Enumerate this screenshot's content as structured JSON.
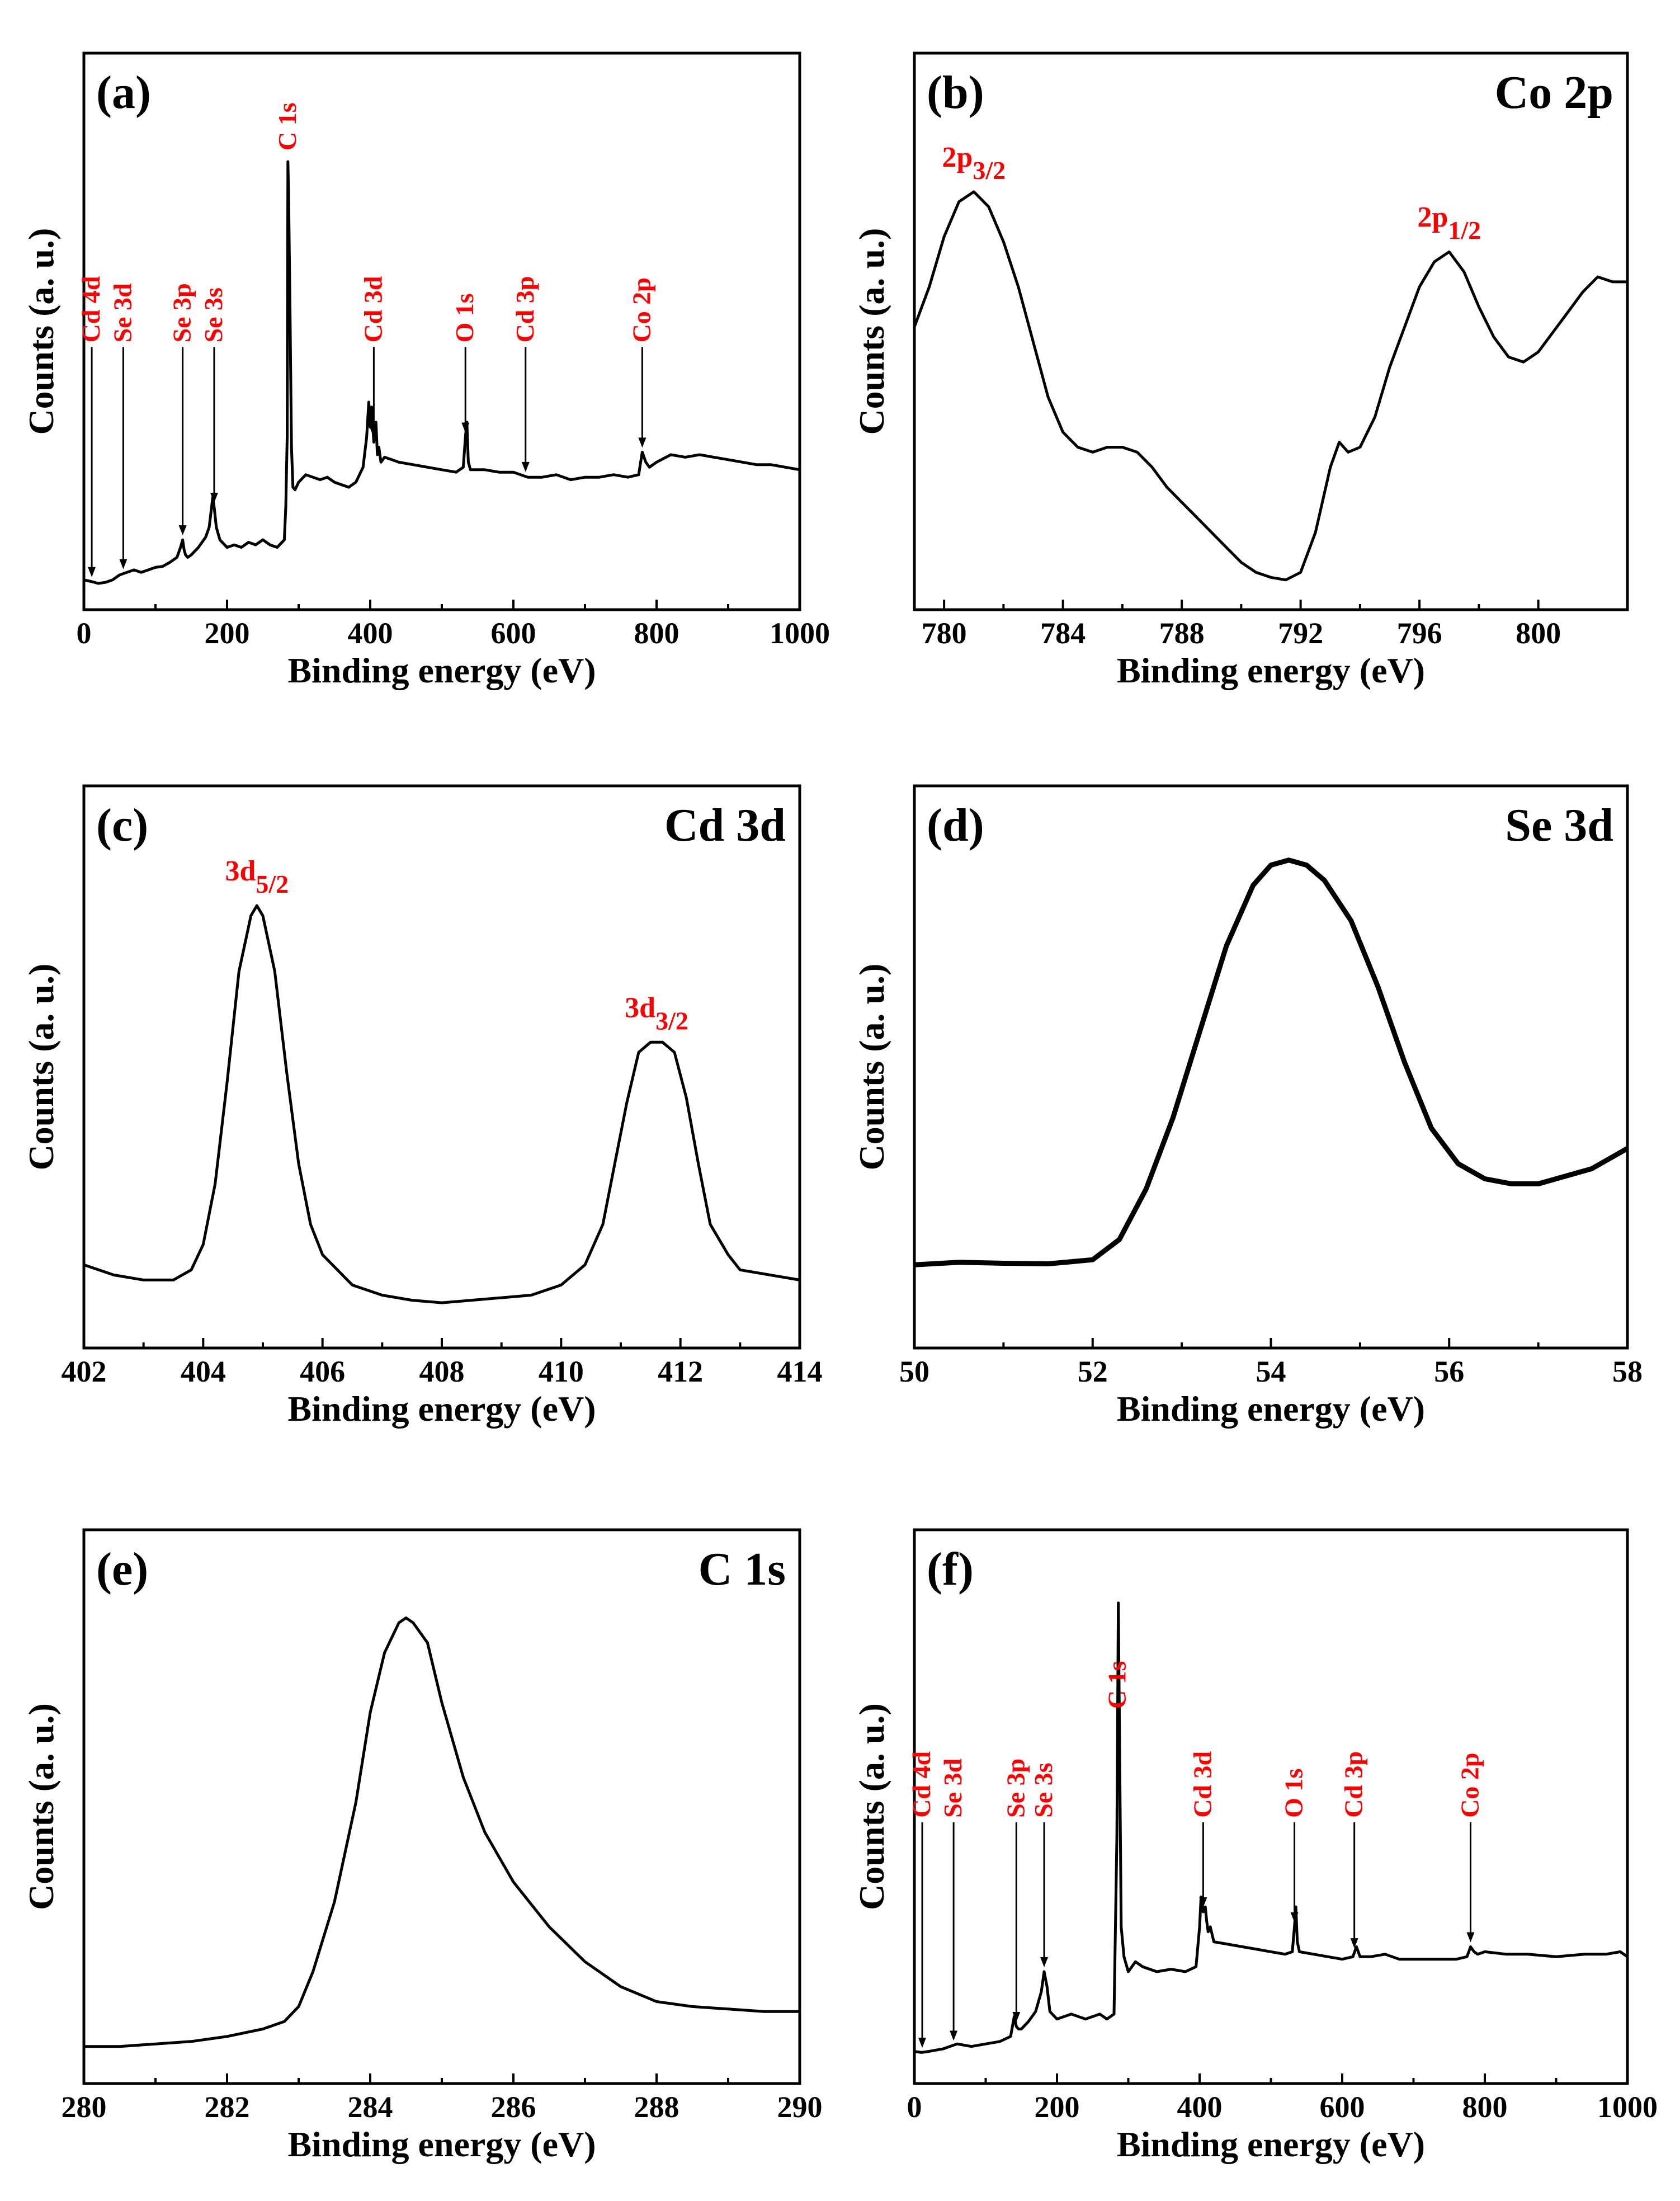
{
  "chart_data": [
    {
      "id": "a",
      "type": "line",
      "panel_label": "(a)",
      "title": "",
      "xlabel": "Binding energy (eV)",
      "ylabel": "Counts (a. u.)",
      "xlim": [
        0,
        1000
      ],
      "ylim": [
        0,
        100
      ],
      "xticks": [
        0,
        200,
        400,
        600,
        800,
        1000
      ],
      "x": [
        0,
        10,
        20,
        30,
        40,
        50,
        60,
        70,
        80,
        90,
        100,
        110,
        120,
        130,
        135,
        138,
        140,
        142,
        145,
        150,
        160,
        170,
        175,
        178,
        180,
        182,
        185,
        190,
        200,
        210,
        220,
        230,
        240,
        250,
        260,
        270,
        280,
        282,
        284,
        285,
        286,
        288,
        290,
        292,
        295,
        300,
        310,
        320,
        330,
        340,
        350,
        360,
        370,
        380,
        390,
        395,
        398,
        400,
        402,
        405,
        408,
        410,
        412,
        415,
        420,
        430,
        440,
        460,
        480,
        500,
        520,
        530,
        533,
        535,
        537,
        540,
        560,
        580,
        600,
        620,
        640,
        660,
        680,
        700,
        720,
        740,
        760,
        775,
        780,
        785,
        790,
        800,
        820,
        840,
        860,
        880,
        900,
        920,
        940,
        960,
        980,
        1000
      ],
      "values": [
        1.5,
        1.2,
        0.8,
        1.0,
        1.5,
        2.5,
        3.0,
        3.5,
        3.0,
        3.5,
        4.0,
        4.2,
        5.0,
        6.0,
        8.0,
        9.5,
        7.5,
        6.5,
        6.0,
        6.5,
        8.0,
        10.0,
        12.0,
        15.5,
        18.0,
        16.0,
        12.0,
        9.5,
        8.0,
        8.5,
        8.0,
        9.0,
        8.5,
        9.5,
        8.5,
        8.0,
        9.5,
        16.0,
        30.0,
        85.0,
        78.0,
        55.0,
        28.0,
        20.0,
        19.5,
        21.0,
        22.5,
        22.0,
        21.5,
        22.0,
        21.0,
        20.5,
        20.0,
        21.0,
        24.0,
        30.0,
        37.0,
        32.0,
        36.0,
        29.0,
        33.0,
        26.5,
        28.0,
        25.0,
        26.0,
        25.5,
        25.0,
        24.5,
        24.0,
        23.5,
        23.0,
        24.0,
        30.0,
        33.0,
        25.0,
        23.5,
        23.5,
        23.0,
        23.0,
        22.0,
        22.0,
        22.5,
        21.5,
        22.0,
        22.0,
        22.5,
        22.0,
        22.5,
        27.0,
        25.0,
        24.0,
        25.0,
        26.5,
        26.0,
        26.5,
        26.0,
        25.5,
        25.0,
        24.5,
        24.5,
        24.0,
        23.5
      ],
      "annotations": [
        {
          "text": "Cd 4d",
          "x": 11
        },
        {
          "text": "Se 3d",
          "x": 55
        },
        {
          "text": "Se 3p",
          "x": 138
        },
        {
          "text": "Se 3s",
          "x": 182
        },
        {
          "text": "C 1s",
          "x": 285
        },
        {
          "text": "Cd 3d",
          "x": 405
        },
        {
          "text": "O 1s",
          "x": 533
        },
        {
          "text": "Cd 3p",
          "x": 617
        },
        {
          "text": "Co 2p",
          "x": 780
        }
      ]
    },
    {
      "id": "b",
      "type": "line",
      "panel_label": "(b)",
      "title": "Co 2p",
      "xlabel": "Binding energy (eV)",
      "ylabel": "Counts (a. u.)",
      "xlim": [
        779,
        803
      ],
      "ylim": [
        0,
        100
      ],
      "xticks": [
        780,
        784,
        788,
        792,
        796,
        800
      ],
      "x": [
        779,
        779.5,
        780,
        780.5,
        781,
        781.5,
        782,
        782.5,
        783,
        783.5,
        784,
        784.5,
        785,
        785.5,
        786,
        786.5,
        787,
        787.5,
        788,
        788.5,
        789,
        789.5,
        790,
        790.5,
        791,
        791.5,
        792,
        792.5,
        793,
        793.3,
        793.6,
        794,
        794.5,
        795,
        795.5,
        796,
        796.5,
        797,
        797.5,
        798,
        798.5,
        799,
        799.5,
        800,
        800.5,
        801,
        801.5,
        802,
        802.5,
        803
      ],
      "values": [
        52,
        60,
        70,
        77,
        79,
        76,
        69,
        60,
        49,
        38,
        31,
        28,
        27,
        28,
        28,
        27,
        24,
        20,
        17,
        14,
        11,
        8,
        5,
        3,
        2,
        1.5,
        3,
        11,
        24,
        29,
        27,
        28,
        34,
        44,
        52,
        60,
        65,
        67,
        63,
        56,
        50,
        46,
        45,
        47,
        51,
        55,
        59,
        62,
        61,
        61
      ],
      "annotations": [
        {
          "text": "2p",
          "sub": "3/2",
          "x": 781
        },
        {
          "text": "2p",
          "sub": "1/2",
          "x": 797
        }
      ]
    },
    {
      "id": "c",
      "type": "line",
      "panel_label": "(c)",
      "title": "Cd 3d",
      "xlabel": "Binding energy (eV)",
      "ylabel": "Counts (a. u.)",
      "xlim": [
        402,
        414
      ],
      "ylim": [
        0,
        100
      ],
      "xticks": [
        402,
        404,
        406,
        408,
        410,
        412,
        414
      ],
      "x": [
        402,
        402.5,
        403,
        403.5,
        403.8,
        404,
        404.2,
        404.4,
        404.6,
        404.8,
        404.9,
        405,
        405.2,
        405.4,
        405.6,
        405.8,
        406,
        406.5,
        407,
        407.5,
        408,
        408.5,
        409,
        409.5,
        410,
        410.4,
        410.7,
        410.9,
        411.1,
        411.3,
        411.5,
        411.7,
        411.9,
        412.1,
        412.3,
        412.5,
        412.8,
        413,
        413.5,
        414
      ],
      "values": [
        12,
        10,
        9,
        9,
        11,
        16,
        28,
        48,
        70,
        81,
        83,
        81,
        70,
        50,
        32,
        20,
        14,
        8,
        6,
        5,
        4.5,
        5,
        5.5,
        6,
        8,
        12,
        20,
        32,
        44,
        54,
        56,
        56,
        54,
        45,
        32,
        20,
        14,
        11,
        10,
        9
      ],
      "annotations": [
        {
          "text": "3d",
          "sub": "5/2",
          "x": 404.9
        },
        {
          "text": "3d",
          "sub": "3/2",
          "x": 411.6
        }
      ]
    },
    {
      "id": "d",
      "type": "line",
      "panel_label": "(d)",
      "title": "Se 3d",
      "xlabel": "Binding energy (eV)",
      "ylabel": "Counts (a. u.)",
      "xlim": [
        50,
        58
      ],
      "ylim": [
        0,
        100
      ],
      "xticks": [
        50,
        52,
        54,
        56,
        58
      ],
      "x": [
        50,
        50.5,
        51,
        51.5,
        52,
        52.3,
        52.6,
        52.9,
        53.2,
        53.5,
        53.8,
        54,
        54.2,
        54.4,
        54.6,
        54.9,
        55.2,
        55.5,
        55.8,
        56.1,
        56.4,
        56.7,
        57,
        57.3,
        57.6,
        58
      ],
      "values": [
        12,
        12.5,
        12.3,
        12.2,
        13,
        17,
        27,
        41,
        58,
        75,
        87,
        91,
        92,
        91,
        88,
        80,
        67,
        52,
        39,
        32,
        29,
        28,
        28,
        29.5,
        31,
        35
      ]
    },
    {
      "id": "e",
      "type": "line",
      "panel_label": "(e)",
      "title": "C 1s",
      "xlabel": "Binding energy (eV)",
      "ylabel": "Counts (a. u.)",
      "xlim": [
        280,
        290
      ],
      "ylim": [
        0,
        100
      ],
      "xticks": [
        280,
        282,
        284,
        286,
        288,
        290
      ],
      "x": [
        280,
        280.5,
        281,
        281.5,
        282,
        282.5,
        282.8,
        283,
        283.2,
        283.5,
        283.8,
        284,
        284.2,
        284.4,
        284.5,
        284.6,
        284.8,
        285,
        285.3,
        285.6,
        286,
        286.5,
        287,
        287.5,
        288,
        288.5,
        289,
        289.5,
        290
      ],
      "values": [
        3,
        3,
        3.5,
        4,
        5,
        6.5,
        8,
        11,
        18,
        32,
        52,
        70,
        82,
        88,
        89,
        88,
        84,
        72,
        57,
        46,
        36,
        27,
        20,
        15,
        12,
        11,
        10.5,
        10,
        10
      ]
    },
    {
      "id": "f",
      "type": "line",
      "panel_label": "(f)",
      "title": "",
      "xlabel": "Binding energy (eV)",
      "ylabel": "Counts (a. u.)",
      "xlim": [
        0,
        1000
      ],
      "ylim": [
        0,
        100
      ],
      "xticks": [
        0,
        200,
        400,
        600,
        800,
        1000
      ],
      "x": [
        0,
        10,
        20,
        40,
        60,
        80,
        100,
        120,
        135,
        140,
        143,
        146,
        150,
        160,
        170,
        178,
        182,
        186,
        190,
        200,
        220,
        240,
        260,
        270,
        280,
        284,
        286,
        288,
        290,
        294,
        300,
        310,
        320,
        340,
        360,
        380,
        395,
        400,
        402,
        405,
        408,
        410,
        412,
        415,
        420,
        440,
        460,
        480,
        500,
        520,
        530,
        533,
        535,
        537,
        540,
        560,
        580,
        600,
        615,
        620,
        625,
        640,
        660,
        680,
        700,
        720,
        740,
        760,
        775,
        780,
        785,
        790,
        800,
        830,
        860,
        900,
        940,
        970,
        990,
        1000
      ],
      "values": [
        2,
        1.8,
        2,
        2.5,
        3.5,
        3,
        3.5,
        4,
        5,
        9,
        7,
        6.5,
        6.5,
        8,
        10,
        14,
        18,
        15,
        10,
        8.5,
        9.5,
        8.5,
        9.5,
        8.5,
        9.5,
        45,
        92,
        60,
        27,
        21,
        18,
        20,
        19,
        18,
        18.5,
        18,
        19,
        27,
        33,
        30,
        31,
        28,
        26,
        27,
        24,
        23.5,
        23,
        22.5,
        22,
        21.5,
        22,
        27,
        31,
        24,
        22,
        21.5,
        21,
        20.5,
        21,
        23,
        21,
        21,
        21.5,
        20.5,
        20.5,
        20.5,
        20.5,
        20.5,
        21,
        23,
        22,
        21.5,
        22,
        21.5,
        21.5,
        21,
        21.5,
        21.5,
        22,
        21
      ],
      "annotations": [
        {
          "text": "Cd 4d",
          "x": 11
        },
        {
          "text": "Se 3d",
          "x": 55
        },
        {
          "text": "Se 3p",
          "x": 143
        },
        {
          "text": "Se 3s",
          "x": 182
        },
        {
          "text": "C 1s",
          "x": 285
        },
        {
          "text": "Cd 3d",
          "x": 405
        },
        {
          "text": "O 1s",
          "x": 533
        },
        {
          "text": "Cd 3p",
          "x": 617
        },
        {
          "text": "Co 2p",
          "x": 780
        }
      ]
    }
  ]
}
